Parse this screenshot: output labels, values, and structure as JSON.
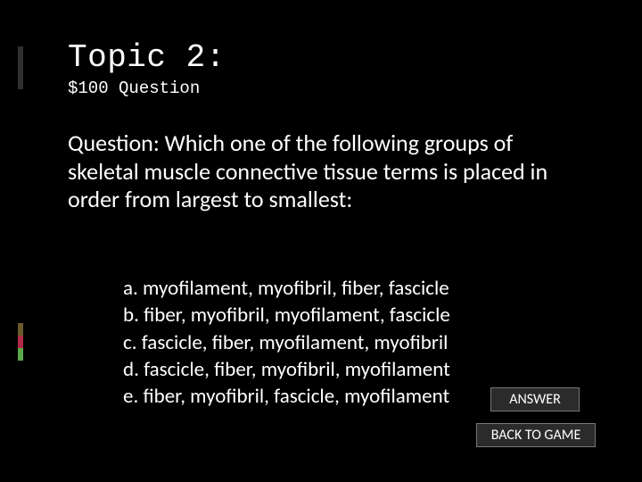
{
  "background_color": "#000000",
  "text_color": "#ffffff",
  "accent_colors": {
    "dark": "#2f2f2f",
    "olive": "#6a5a2a",
    "red": "#b02a4a",
    "green": "#5aa84a"
  },
  "title": "Topic 2:",
  "title_font": "Consolas",
  "title_fontsize": 36,
  "subtitle": "$100 Question",
  "subtitle_font": "Consolas",
  "subtitle_fontsize": 19,
  "question_text": "Question: Which one of the following groups of skeletal muscle connective tissue terms is placed in order from largest to smallest:",
  "question_font": "Corbel",
  "question_fontsize": 26,
  "answers": {
    "a": "a. myofilament, myofibril, fiber, fascicle",
    "b": "b. fiber, myofibril, myofilament, fascicle",
    "c": "c. fascicle, fiber, myofilament, myofibril",
    "d": "d. fascicle, fiber, myofibril, myofilament",
    "e": "e. fiber, myofibril, fascicle, myofilament"
  },
  "answers_font": "Corbel",
  "answers_fontsize": 23,
  "buttons": {
    "answer": "ANSWER",
    "back": "BACK TO GAME"
  },
  "button_bg": "#2b2b2b",
  "button_border": "#777777",
  "button_fontsize": 16
}
